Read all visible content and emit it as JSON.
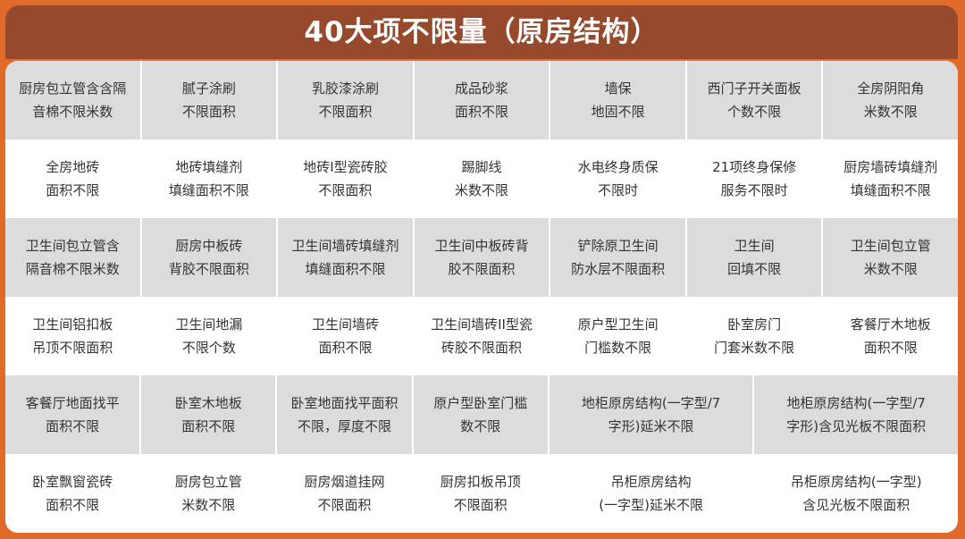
{
  "title": "40大项不限量（原房结构）",
  "colors": {
    "background": "#E06A2A",
    "header": "#97492C",
    "gray_row": "#DCDCDC",
    "white_row": "#FFFFFF"
  },
  "rows": [
    [
      "厨房包立管含含隔\n音棉不限米数",
      "腻子涂刷\n不限面积",
      "乳胶漆涂刷\n不限面积",
      "成品砂浆\n面积不限",
      "墙保\n地固不限",
      "西门子开关面板\n个数不限",
      "全房阴阳角\n米数不限"
    ],
    [
      "全房地砖\n面积不限",
      "地砖填缝剂\n填缝面积不限",
      "地砖I型瓷砖胶\n不限面积",
      "踢脚线\n米数不限",
      "水电终身质保\n不限时",
      "21项终身保修\n服务不限时",
      "厨房墙砖填缝剂\n填缝面积不限"
    ],
    [
      "卫生间包立管含\n隔音棉不限米数",
      "厨房中板砖\n背胶不限面积",
      "卫生间墙砖填缝剂\n填缝面积不限",
      "卫生间中板砖背\n胶不限面积",
      "铲除原卫生间\n防水层不限面积",
      "卫生间\n回填不限",
      "卫生间包立管\n米数不限"
    ],
    [
      "卫生间铝扣板\n吊顶不限面积",
      "卫生间地漏\n不限个数",
      "卫生间墙砖\n面积不限",
      "卫生间墙砖II型瓷\n砖胶不限面积",
      "原户型卫生间\n门槛数不限",
      "卧室房门\n门套米数不限",
      "客餐厅木地板\n面积不限"
    ],
    [
      "客餐厅地面找平\n面积不限",
      "卧室木地板\n面积不限",
      "卧室地面找平面积\n不限，厚度不限",
      "原户型卧室门槛\n数不限",
      "地柜原房结构(一字型/7\n字形)延米不限",
      "地柜原房结构(一字型/7\n字形)含见光板不限面积"
    ],
    [
      "卧室飘窗瓷砖\n面积不限",
      "厨房包立管\n米数不限",
      "厨房烟道挂网\n不限面积",
      "厨房扣板吊顶\n不限面积",
      "吊柜原房结构\n(一字型)延米不限",
      "吊柜原房结构(一字型)\n含见光板不限面积"
    ]
  ]
}
